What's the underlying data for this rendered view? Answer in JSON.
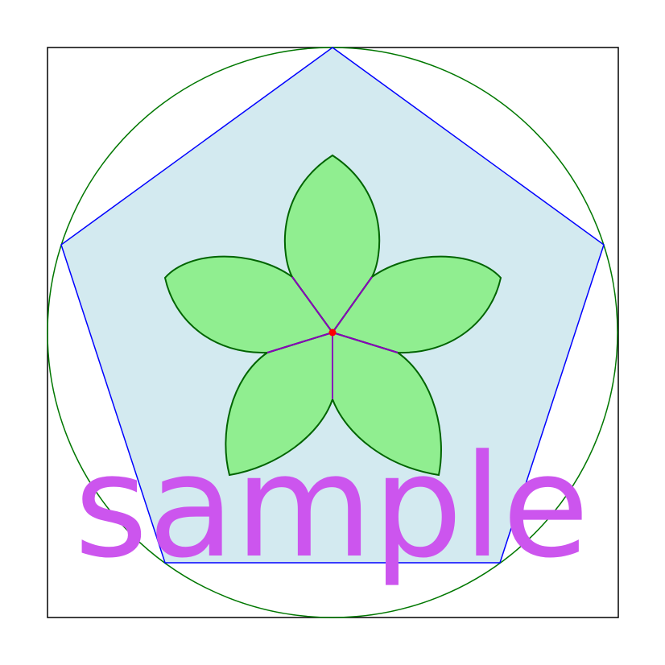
{
  "watermark": {
    "text": "sample",
    "color": "#cc55ee"
  },
  "colors": {
    "frame": "#000000",
    "circle": "#007700",
    "pentagon_stroke": "#0000ff",
    "pentagon_fill": "#d3eaf0",
    "petal_fill": "#90ee90",
    "petal_stroke": "#006400",
    "spoke": "#8800bb",
    "center": "#ff0000"
  },
  "shapes": {
    "petal_count": 5
  }
}
